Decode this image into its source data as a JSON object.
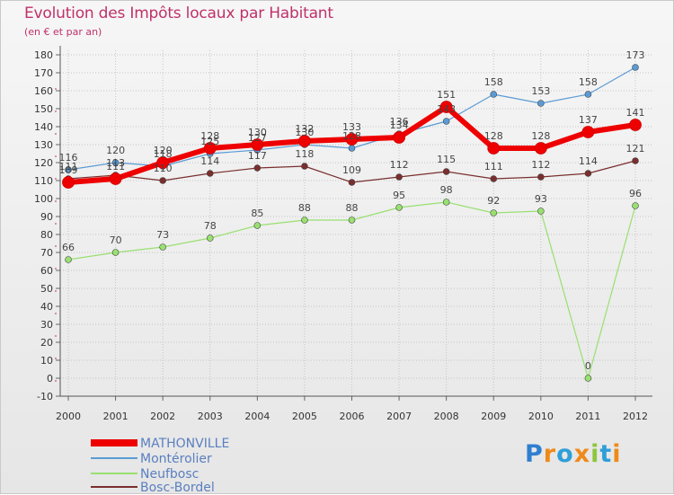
{
  "chart_data": {
    "type": "line",
    "title": "Evolution des Impôts locaux par Habitant",
    "subtitle": "(en € et par an)",
    "xlabel": "",
    "ylabel": "",
    "ylim": [
      -10,
      180
    ],
    "yticks": [
      "-10",
      "0",
      "10",
      "20",
      "30",
      "40",
      "50",
      "60",
      "70",
      "80",
      "90",
      "100",
      "110",
      "120",
      "130",
      "140",
      "150",
      "160",
      "170",
      "180"
    ],
    "categories": [
      "2000",
      "2001",
      "2002",
      "2003",
      "2004",
      "2005",
      "2006",
      "2007",
      "2008",
      "2009",
      "2010",
      "2011",
      "2012"
    ],
    "series": [
      {
        "name": "MATHONVILLE",
        "color": "#ee0000",
        "values": [
          109,
          111,
          120,
          128,
          130,
          132,
          133,
          134,
          151,
          128,
          128,
          137,
          141
        ]
      },
      {
        "name": "Montérolier",
        "color": "#5a9bd5",
        "values": [
          116,
          120,
          118,
          125,
          127,
          130,
          128,
          136,
          143,
          158,
          153,
          158,
          173
        ]
      },
      {
        "name": "Neufbosc",
        "color": "#98e070",
        "values": [
          66,
          70,
          73,
          78,
          85,
          88,
          88,
          95,
          98,
          92,
          93,
          0,
          96
        ]
      },
      {
        "name": "Bosc-Bordel",
        "color": "#7a2e2e",
        "values": [
          111,
          113,
          110,
          114,
          117,
          118,
          109,
          112,
          115,
          111,
          112,
          114,
          121
        ]
      }
    ],
    "legend_position": "bottom-left"
  },
  "logo": {
    "chars": [
      "P",
      "r",
      "o",
      "x",
      "i",
      "t",
      "i"
    ],
    "colors": [
      "#2f7fd0",
      "#ef8a1a",
      "#2f9fd8",
      "#ef8a1a",
      "#8dc63f",
      "#2f9fd8",
      "#ef8a1a"
    ]
  }
}
